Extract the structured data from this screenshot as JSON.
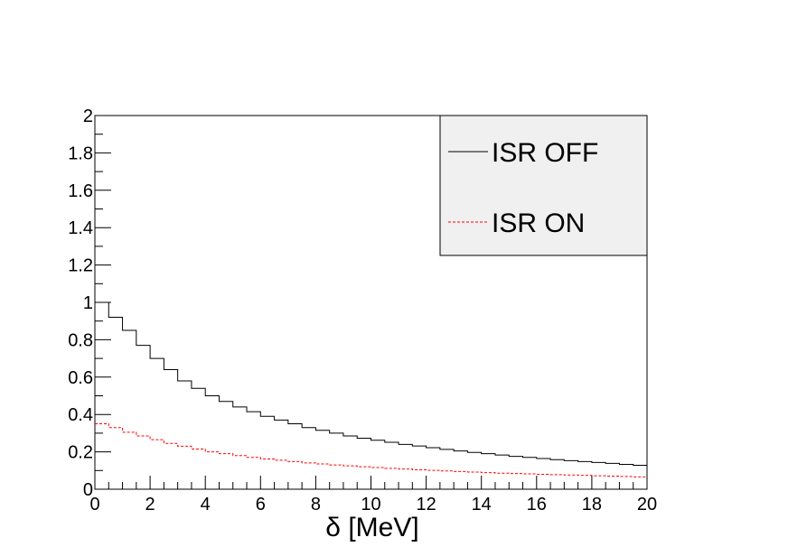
{
  "chart_data": {
    "type": "line",
    "title": "",
    "xlabel": "δ [MeV]",
    "ylabel": "",
    "xlim": [
      0,
      20
    ],
    "ylim": [
      0,
      2
    ],
    "x_ticks": [
      "0",
      "2",
      "4",
      "6",
      "8",
      "10",
      "12",
      "14",
      "16",
      "18",
      "20"
    ],
    "y_ticks": [
      "0",
      "0.2",
      "0.4",
      "0.6",
      "0.8",
      "1",
      "1.2",
      "1.4",
      "1.6",
      "1.8",
      "2"
    ],
    "grid": false,
    "legend_position": "top-right",
    "bin_width": 0.5,
    "series": [
      {
        "name": "ISR OFF",
        "color": "#000000",
        "style": "solid",
        "x": [
          0,
          0.5,
          1,
          1.5,
          2,
          2.5,
          3,
          3.5,
          4,
          4.5,
          5,
          5.5,
          6,
          6.5,
          7,
          7.5,
          8,
          8.5,
          9,
          9.5,
          10,
          10.5,
          11,
          11.5,
          12,
          12.5,
          13,
          13.5,
          14,
          14.5,
          15,
          15.5,
          16,
          16.5,
          17,
          17.5,
          18,
          18.5,
          19,
          19.5
        ],
        "values": [
          1.0,
          0.92,
          0.85,
          0.77,
          0.7,
          0.64,
          0.58,
          0.54,
          0.5,
          0.47,
          0.44,
          0.415,
          0.39,
          0.37,
          0.35,
          0.33,
          0.315,
          0.3,
          0.285,
          0.273,
          0.262,
          0.251,
          0.24,
          0.231,
          0.222,
          0.213,
          0.205,
          0.197,
          0.19,
          0.183,
          0.176,
          0.17,
          0.164,
          0.158,
          0.153,
          0.148,
          0.143,
          0.138,
          0.133,
          0.128
        ]
      },
      {
        "name": "ISR ON",
        "color": "#ff0000",
        "style": "dashed",
        "x": [
          0,
          0.5,
          1,
          1.5,
          2,
          2.5,
          3,
          3.5,
          4,
          4.5,
          5,
          5.5,
          6,
          6.5,
          7,
          7.5,
          8,
          8.5,
          9,
          9.5,
          10,
          10.5,
          11,
          11.5,
          12,
          12.5,
          13,
          13.5,
          14,
          14.5,
          15,
          15.5,
          16,
          16.5,
          17,
          17.5,
          18,
          18.5,
          19,
          19.5
        ],
        "values": [
          0.35,
          0.33,
          0.305,
          0.285,
          0.265,
          0.245,
          0.23,
          0.215,
          0.2,
          0.19,
          0.18,
          0.17,
          0.162,
          0.155,
          0.148,
          0.141,
          0.135,
          0.13,
          0.125,
          0.12,
          0.116,
          0.112,
          0.108,
          0.104,
          0.101,
          0.098,
          0.095,
          0.092,
          0.089,
          0.086,
          0.084,
          0.082,
          0.08,
          0.078,
          0.076,
          0.074,
          0.072,
          0.07,
          0.068,
          0.066
        ]
      }
    ]
  }
}
